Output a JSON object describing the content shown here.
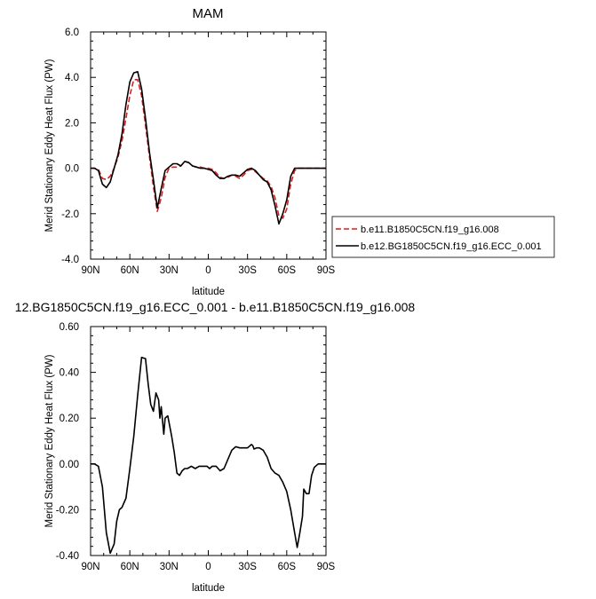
{
  "chart_data": [
    {
      "type": "line",
      "title": "MAM",
      "xlabel": "latitude",
      "ylabel": "Merid Stationary Eddy Heat Flux (PW)",
      "xlim": [
        90,
        -90
      ],
      "ylim": [
        -4.0,
        6.0
      ],
      "x_ticks": [
        90,
        60,
        30,
        0,
        -30,
        -60,
        -90
      ],
      "x_tick_labels": [
        "90N",
        "60N",
        "30N",
        "0",
        "30S",
        "60S",
        "90S"
      ],
      "y_ticks": [
        -4.0,
        -2.0,
        0.0,
        2.0,
        4.0,
        6.0
      ],
      "y_tick_labels": [
        "-4.0",
        "-2.0",
        "0.0",
        "2.0",
        "4.0",
        "6.0"
      ],
      "legend_position": "right",
      "series": [
        {
          "name": "b.e11.B1850C5CN.f19_g16.008",
          "color": "#e41a1c",
          "dash": "dashed",
          "x": [
            90,
            87,
            84,
            81,
            78,
            75,
            72,
            69,
            66,
            63,
            60,
            57,
            54,
            51,
            48,
            45,
            42,
            39,
            36,
            33,
            30,
            27,
            24,
            21,
            18,
            15,
            12,
            9,
            6,
            3,
            0,
            -3,
            -6,
            -9,
            -12,
            -15,
            -18,
            -21,
            -24,
            -27,
            -30,
            -33,
            -36,
            -39,
            -42,
            -45,
            -48,
            -51,
            -54,
            -57,
            -60,
            -63,
            -66,
            -69,
            -72,
            -75,
            -78,
            -81,
            -84,
            -87,
            -90
          ],
          "y": [
            0.0,
            0.0,
            -0.05,
            -0.45,
            -0.5,
            -0.35,
            0.0,
            0.5,
            1.2,
            2.2,
            3.2,
            3.9,
            3.9,
            3.2,
            1.9,
            0.5,
            -0.8,
            -1.9,
            -1.3,
            -0.4,
            0.0,
            0.05,
            0.05,
            0.1,
            0.3,
            0.25,
            0.1,
            0.05,
            0.05,
            0.0,
            0.0,
            -0.05,
            -0.2,
            -0.4,
            -0.45,
            -0.4,
            -0.3,
            -0.35,
            -0.45,
            -0.3,
            -0.1,
            -0.05,
            -0.15,
            -0.3,
            -0.45,
            -0.55,
            -0.8,
            -1.3,
            -2.1,
            -2.2,
            -1.8,
            -0.7,
            -0.1,
            0.0,
            0.0,
            0.0,
            0.0,
            0.0,
            0.0,
            0.0,
            0.0
          ]
        },
        {
          "name": "b.e12.BG1850C5CN.f19_g16.ECC_0.001",
          "color": "#000000",
          "dash": "solid",
          "x": [
            90,
            87,
            84,
            81,
            78,
            75,
            72,
            69,
            66,
            63,
            60,
            57,
            54,
            51,
            48,
            45,
            42,
            39,
            36,
            33,
            30,
            27,
            24,
            21,
            18,
            15,
            12,
            9,
            6,
            3,
            0,
            -3,
            -6,
            -9,
            -12,
            -15,
            -18,
            -21,
            -24,
            -27,
            -30,
            -33,
            -36,
            -39,
            -42,
            -45,
            -48,
            -51,
            -54,
            -57,
            -60,
            -63,
            -66,
            -69,
            -72,
            -75,
            -78,
            -81,
            -84,
            -87,
            -90
          ],
          "y": [
            0.0,
            0.0,
            -0.1,
            -0.7,
            -0.85,
            -0.6,
            0.0,
            0.6,
            1.5,
            2.8,
            3.8,
            4.2,
            4.25,
            3.5,
            2.2,
            0.7,
            -0.5,
            -1.75,
            -0.9,
            -0.1,
            0.05,
            0.2,
            0.2,
            0.1,
            0.3,
            0.25,
            0.1,
            0.05,
            0.0,
            0.0,
            -0.05,
            -0.1,
            -0.3,
            -0.45,
            -0.45,
            -0.35,
            -0.3,
            -0.3,
            -0.35,
            -0.2,
            -0.05,
            0.0,
            -0.1,
            -0.3,
            -0.5,
            -0.6,
            -0.95,
            -1.65,
            -2.45,
            -2.0,
            -1.4,
            -0.35,
            0.0,
            0.0,
            0.0,
            0.0,
            0.0,
            0.0,
            0.0,
            0.0,
            0.0
          ]
        }
      ]
    },
    {
      "type": "line",
      "title": "12.BG1850C5CN.f19_g16.ECC_0.001 - b.e11.B1850C5CN.f19_g16.008",
      "xlabel": "latitude",
      "ylabel": "Merid Stationary Eddy Heat Flux (PW)",
      "xlim": [
        90,
        -90
      ],
      "ylim": [
        -0.4,
        0.6
      ],
      "x_ticks": [
        90,
        60,
        30,
        0,
        -30,
        -60,
        -90
      ],
      "x_tick_labels": [
        "90N",
        "60N",
        "30N",
        "0",
        "30S",
        "60S",
        "90S"
      ],
      "y_ticks": [
        -0.4,
        -0.2,
        0.0,
        0.2,
        0.4,
        0.6
      ],
      "y_tick_labels": [
        "-0.40",
        "-0.20",
        "0.00",
        "0.20",
        "0.40",
        "0.60"
      ],
      "series": [
        {
          "color": "#000000",
          "dash": "solid",
          "x": [
            90,
            87,
            84,
            81,
            78,
            75,
            72,
            70,
            68,
            66,
            63,
            60,
            57,
            54,
            51,
            48,
            46,
            44,
            42,
            40,
            38,
            37,
            36,
            34,
            33,
            31,
            28,
            26,
            24,
            22,
            20,
            18,
            16,
            13,
            10,
            7,
            4,
            1,
            -1,
            -3,
            -6,
            -9,
            -12,
            -15,
            -18,
            -21,
            -24,
            -27,
            -30,
            -33,
            -34,
            -35,
            -37,
            -39,
            -42,
            -45,
            -48,
            -51,
            -54,
            -57,
            -60,
            -63,
            -66,
            -68,
            -70,
            -72,
            -73,
            -75,
            -77,
            -79,
            -81,
            -84,
            -87,
            -90
          ],
          "y": [
            0.0,
            0.0,
            -0.01,
            -0.1,
            -0.3,
            -0.39,
            -0.35,
            -0.25,
            -0.2,
            -0.19,
            -0.15,
            -0.02,
            0.12,
            0.3,
            0.465,
            0.46,
            0.35,
            0.26,
            0.23,
            0.31,
            0.28,
            0.2,
            0.25,
            0.13,
            0.2,
            0.21,
            0.12,
            0.05,
            -0.04,
            -0.05,
            -0.03,
            -0.02,
            -0.02,
            -0.01,
            -0.02,
            -0.01,
            -0.01,
            -0.01,
            -0.02,
            -0.01,
            -0.01,
            -0.03,
            -0.02,
            0.02,
            0.06,
            0.075,
            0.07,
            0.07,
            0.07,
            0.085,
            0.08,
            0.065,
            0.07,
            0.07,
            0.06,
            0.03,
            -0.02,
            -0.04,
            -0.05,
            -0.08,
            -0.12,
            -0.2,
            -0.3,
            -0.365,
            -0.3,
            -0.23,
            -0.11,
            -0.13,
            -0.13,
            -0.05,
            -0.015,
            0.0,
            0.0,
            0.0
          ]
        }
      ]
    }
  ]
}
